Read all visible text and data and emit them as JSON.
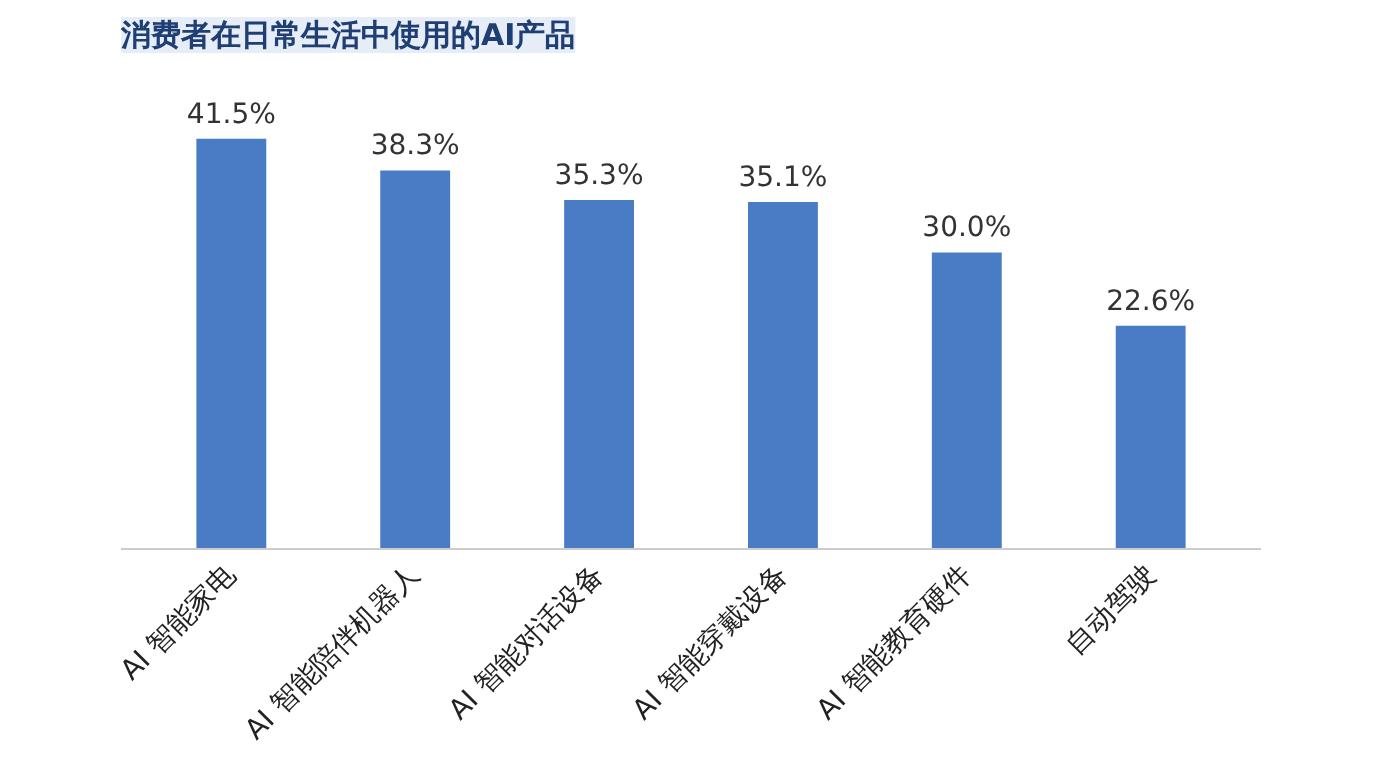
{
  "chart_data": {
    "type": "bar",
    "title": "消费者在日常生活中使用的AI产品",
    "categories": [
      "AI 智能家电",
      "AI 智能陪伴机器人",
      "AI 智能对话设备",
      "AI 智能穿戴设备",
      "AI 智能教育硬件",
      "自动驾驶"
    ],
    "values": [
      41.5,
      38.3,
      35.3,
      35.1,
      30.0,
      22.6
    ],
    "value_labels": [
      "41.5%",
      "38.3%",
      "35.3%",
      "35.1%",
      "30.0%",
      "22.6%"
    ],
    "color": "#4a7cc6",
    "grid": false
  }
}
